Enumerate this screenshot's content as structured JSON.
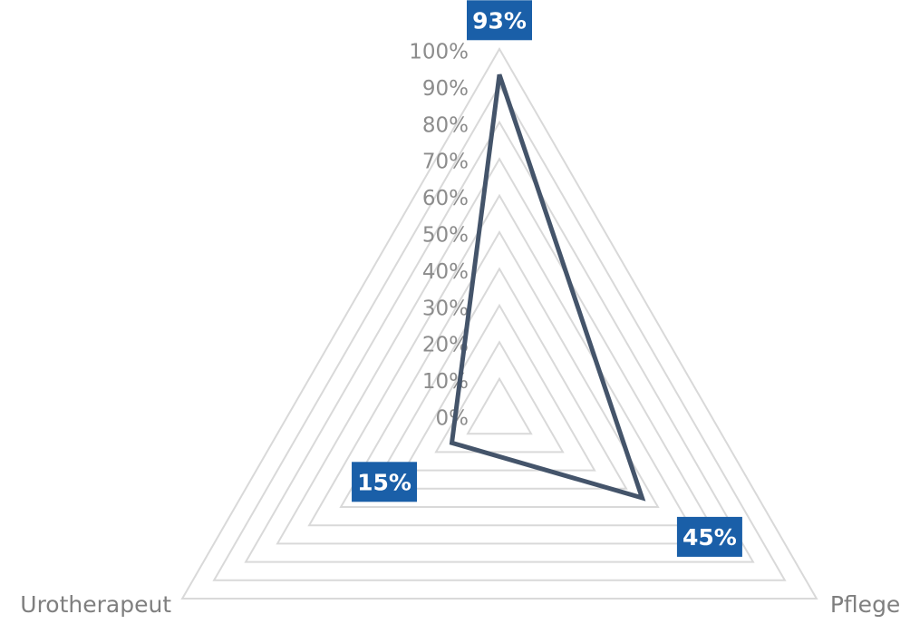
{
  "chart_data": {
    "type": "radar",
    "categories": [
      null,
      "Pflege",
      "Urotherapeut"
    ],
    "series": [
      {
        "color": "#44546a",
        "values": [
          93,
          45,
          15
        ],
        "value_labels": [
          "93%",
          "45%",
          "15%"
        ]
      }
    ],
    "ylim": [
      0,
      100
    ],
    "yticks": [
      {
        "value": 0,
        "label": "0%"
      },
      {
        "value": 10,
        "label": "10%"
      },
      {
        "value": 20,
        "label": "20%"
      },
      {
        "value": 30,
        "label": "30%"
      },
      {
        "value": 40,
        "label": "40%"
      },
      {
        "value": 50,
        "label": "50%"
      },
      {
        "value": 60,
        "label": "60%"
      },
      {
        "value": 70,
        "label": "70%"
      },
      {
        "value": 80,
        "label": "80%"
      },
      {
        "value": 90,
        "label": "90%"
      },
      {
        "value": 100,
        "label": "100%"
      }
    ],
    "grid": true,
    "label_color": "#1a5fa8"
  }
}
